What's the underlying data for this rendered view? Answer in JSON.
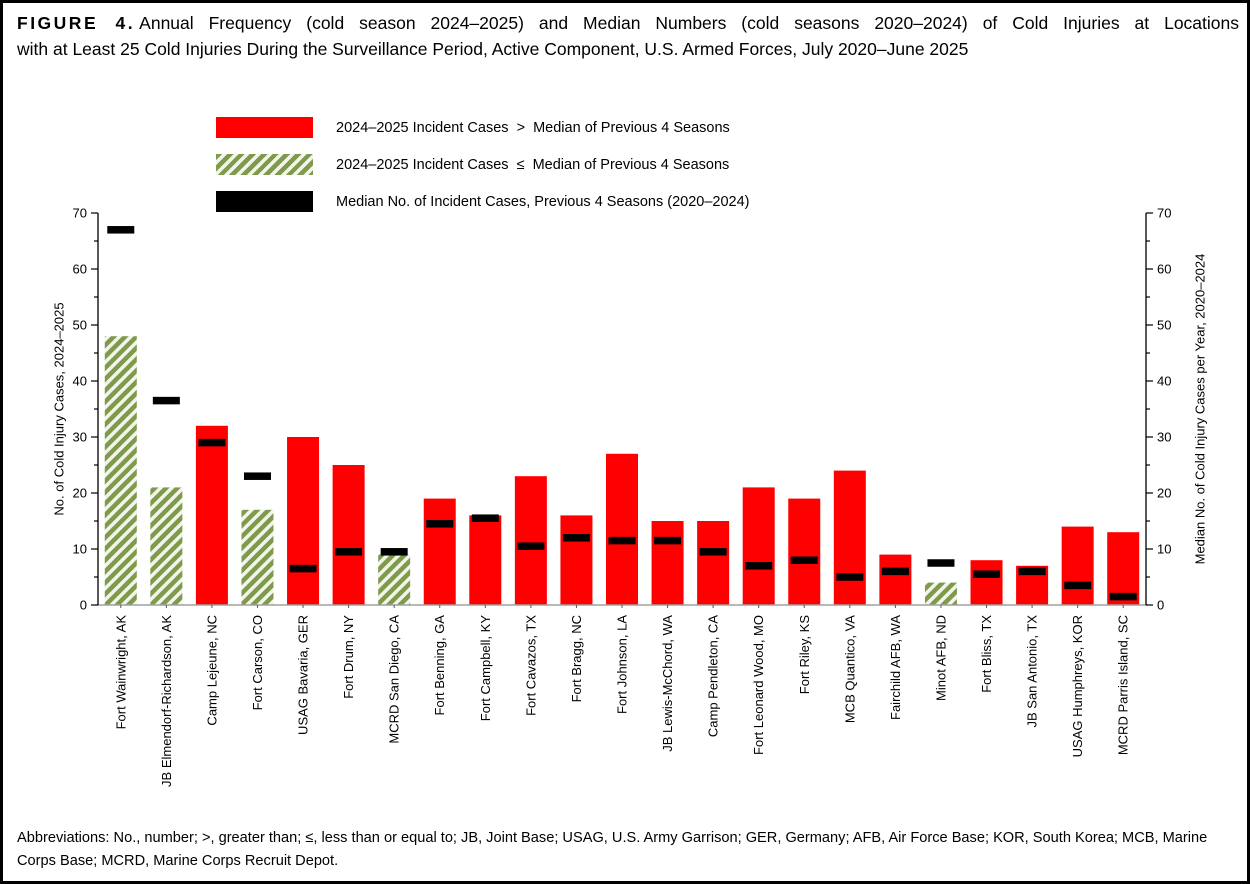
{
  "title": {
    "figure_label": "FIGURE 4.",
    "line1": "Annual Frequency (cold season 2024–2025) and Median Numbers (cold seasons 2020–2024) of Cold Injuries at Locations",
    "line2": "with at Least 25 Cold Injuries During the Surveillance Period, Active Component, U.S. Armed Forces, July 2020–June 2025"
  },
  "legend": {
    "items": [
      {
        "swatch": "red-solid",
        "label": "2024–2025 Incident Cases  >  Median of Previous 4 Seasons"
      },
      {
        "swatch": "green-hatched",
        "label": "2024–2025 Incident Cases  ≤  Median of Previous 4 Seasons"
      },
      {
        "swatch": "black-solid",
        "label": "Median No. of Incident Cases, Previous 4 Seasons (2020–2024)"
      }
    ]
  },
  "colors": {
    "bar_red": "#ff0000",
    "marker_black": "#000000",
    "hatch_green": "#7d9b4a",
    "hatch_background": "#f4f4ec",
    "baseline_gray": "#a0a0a0"
  },
  "chart_data": {
    "type": "bar",
    "left_axis_label": "No. of Cold Injury Cases, 2024–2025",
    "right_axis_label": "Median No. of Cold Injury Cases per Year, 2020–2024",
    "ylim": [
      0,
      70
    ],
    "ytick_step": 10,
    "minor_tick_step": 5,
    "yticks": [
      0,
      10,
      20,
      30,
      40,
      50,
      60,
      70
    ],
    "grid": false,
    "legend_position": "top-left",
    "categories": [
      "Fort Wainwright, AK",
      "JB Elmendorf-Richardson, AK",
      "Camp Lejeune, NC",
      "Fort Carson, CO",
      "USAG Bavaria, GER",
      "Fort Drum, NY",
      "MCRD San Diego, CA",
      "Fort Benning, GA",
      "Fort Campbell, KY",
      "Fort Cavazos, TX",
      "Fort Bragg, NC",
      "Fort Johnson, LA",
      "JB Lewis-McChord, WA",
      "Camp Pendleton, CA",
      "Fort Leonard Wood, MO",
      "Fort Riley, KS",
      "MCB Quantico, VA",
      "Fairchild AFB, WA",
      "Minot AFB, ND",
      "Fort Bliss, TX",
      "JB San Antonio, TX",
      "USAG Humphreys, KOR",
      "MCRD Parris Island, SC"
    ],
    "series": [
      {
        "name": "2024–2025 incident cases",
        "values": [
          48,
          21,
          32,
          17,
          30,
          25,
          9,
          19,
          16,
          23,
          16,
          27,
          15,
          15,
          21,
          19,
          24,
          9,
          4,
          8,
          7,
          14,
          13
        ]
      },
      {
        "name": "Median of previous 4 seasons (2020–2024)",
        "values": [
          67,
          36.5,
          29,
          23,
          6.5,
          9.5,
          9.5,
          14.5,
          15.5,
          10.5,
          12,
          11.5,
          11.5,
          9.5,
          7,
          8,
          5,
          6,
          7.5,
          5.5,
          6,
          3.5,
          1.5
        ]
      }
    ]
  },
  "footer": {
    "text": "Abbreviations: No., number; >, greater than; ≤, less than or equal to; JB, Joint Base; USAG, U.S. Army Garrison; GER, Germany; AFB, Air Force Base; KOR, South Korea; MCB, Marine Corps Base; MCRD, Marine Corps Recruit Depot."
  }
}
